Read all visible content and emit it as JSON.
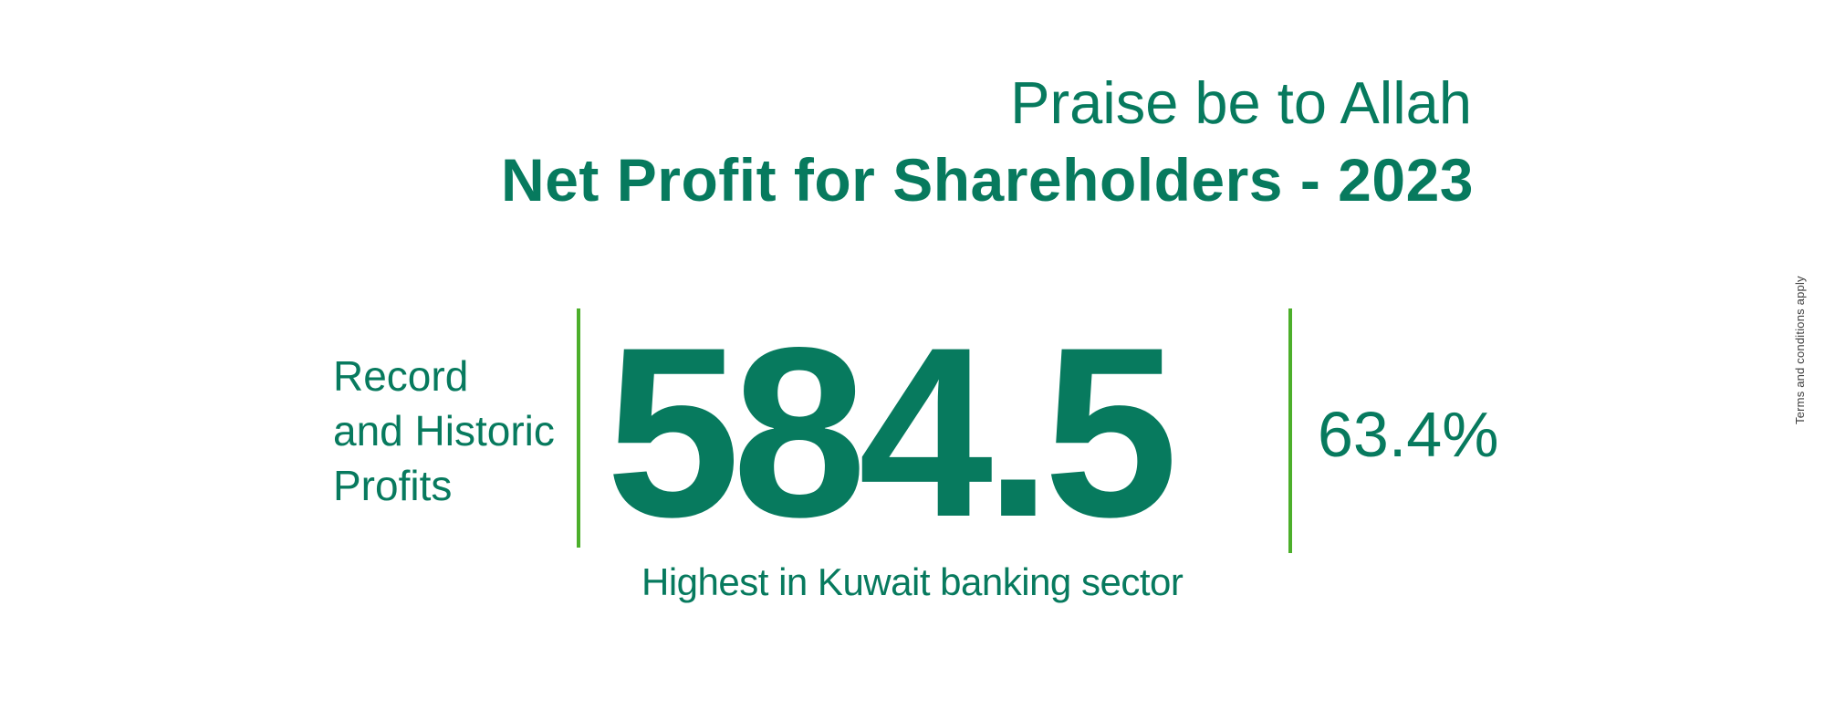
{
  "colors": {
    "background": "#ffffff",
    "brand_green": "#077a5e",
    "accent_green": "#4caf2b",
    "terms_gray": "#404040"
  },
  "header": {
    "praise_line": "Praise be to Allah",
    "title": "Net Profit for Shareholders - 2023"
  },
  "stat": {
    "label_lines": [
      "Record",
      "and Historic",
      "Profits"
    ],
    "value": "584.5",
    "percentage": "63.4%",
    "caption": "Highest in Kuwait banking sector"
  },
  "footnote": {
    "terms": "Terms and conditions apply"
  }
}
